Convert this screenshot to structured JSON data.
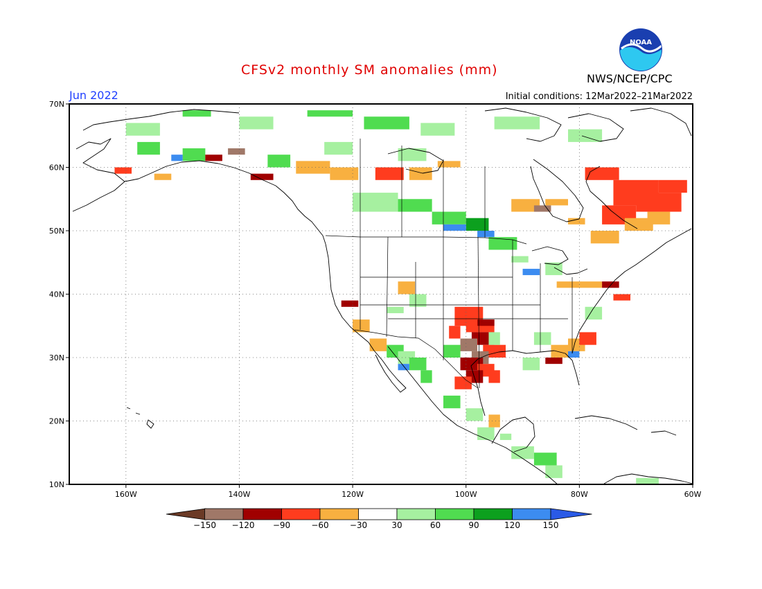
{
  "header": {
    "title": "CFSv2 monthly SM anomalies (mm)",
    "month": "Jun 2022",
    "initial_conditions": "Initial conditions: 12Mar2022–21Mar2022",
    "agency": "NWS/NCEP/CPC",
    "logo_text": "NOAA"
  },
  "map": {
    "lon_range": [
      -170,
      -60
    ],
    "lat_range": [
      10,
      70
    ],
    "lon_ticks": [
      {
        "value": -160,
        "label": "160W"
      },
      {
        "value": -140,
        "label": "140W"
      },
      {
        "value": -120,
        "label": "120W"
      },
      {
        "value": -100,
        "label": "100W"
      },
      {
        "value": -80,
        "label": "80W"
      },
      {
        "value": -60,
        "label": "60W"
      }
    ],
    "lat_ticks": [
      {
        "value": 70,
        "label": "70N"
      },
      {
        "value": 60,
        "label": "60N"
      },
      {
        "value": 50,
        "label": "50N"
      },
      {
        "value": 40,
        "label": "40N"
      },
      {
        "value": 30,
        "label": "30N"
      },
      {
        "value": 20,
        "label": "20N"
      },
      {
        "value": 10,
        "label": "10N"
      }
    ],
    "grid": "dotted"
  },
  "colorbar": {
    "levels": [
      "-150",
      "-120",
      "-90",
      "-60",
      "-30",
      "30",
      "60",
      "90",
      "120",
      "150"
    ],
    "colors": [
      "#6b3a26",
      "#a07868",
      "#a00000",
      "#ff3c1e",
      "#f8b040",
      "#ffffff",
      "#a6f0a0",
      "#50dc50",
      "#0ca01e",
      "#3c8cf0",
      "#2a5ae6"
    ]
  },
  "colors": {
    "dry_extreme": "#6b3a26",
    "dry_strong": "#a07868",
    "dry_red": "#a00000",
    "dry_orange": "#ff3c1e",
    "dry_light": "#f8b040",
    "wet_light": "#a6f0a0",
    "wet_mid": "#50dc50",
    "wet_strong": "#0ca01e",
    "wet_blue": "#3c8cf0"
  }
}
